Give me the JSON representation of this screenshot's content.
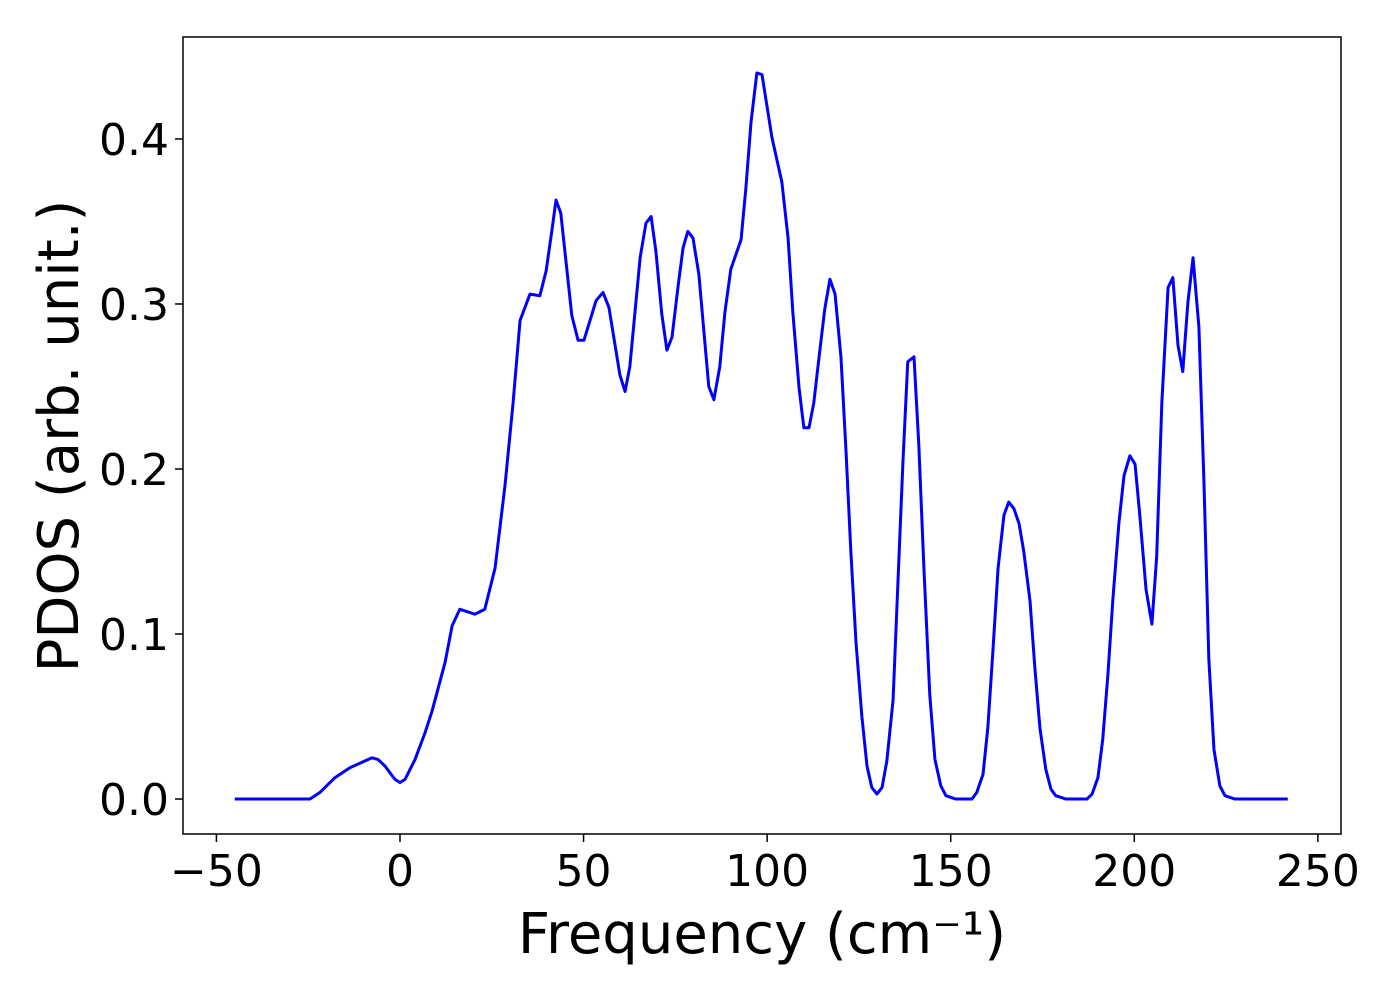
{
  "chart_data": {
    "type": "line",
    "xlabel": "Frequency (cm⁻¹)",
    "ylabel": "PDOS (arb. unit.)",
    "x": [
      -45,
      -24.5,
      -21.8,
      -17.7,
      -13.6,
      -7.6,
      -6,
      -4.1,
      -1.4,
      0,
      1.4,
      4.1,
      6.8,
      8.7,
      12.3,
      14.2,
      16.3,
      20.4,
      23.1,
      25.9,
      28.6,
      30.8,
      32.7,
      35.4,
      38.1,
      39.8,
      41.4,
      42.5,
      43.8,
      46.8,
      48.5,
      50.1,
      53.4,
      55.3,
      56.9,
      59.9,
      61.3,
      62.6,
      65.4,
      67,
      68.4,
      69.7,
      71.3,
      72.7,
      74.1,
      75.7,
      77.1,
      78.4,
      79.8,
      81.4,
      84.1,
      85.5,
      87.1,
      88.5,
      90.1,
      92.9,
      94.2,
      95.6,
      97.2,
      98.6,
      101.3,
      104,
      105.7,
      107,
      108.7,
      110,
      111.4,
      112.7,
      114.1,
      115.7,
      117.1,
      118.5,
      120.1,
      121.5,
      122.8,
      124.2,
      125.8,
      127.2,
      128.5,
      129.9,
      131.3,
      132.6,
      134.3,
      135.6,
      137,
      138.3,
      140,
      141.3,
      142.7,
      144.3,
      145.7,
      147.3,
      148.7,
      151.4,
      155.8,
      157.1,
      158.8,
      160.1,
      161.5,
      162.9,
      164.5,
      165.8,
      167.2,
      168.6,
      169.9,
      171.6,
      172.9,
      174.3,
      175.9,
      177.3,
      178.6,
      181.4,
      187.1,
      188.5,
      190.1,
      191.4,
      192.8,
      194.2,
      195.8,
      197.2,
      198.8,
      200.2,
      201.5,
      203.2,
      204.8,
      206.1,
      207.5,
      209.2,
      210.5,
      211.9,
      213.2,
      214.6,
      216,
      217.6,
      219,
      220.3,
      221.7,
      223.3,
      224.7,
      227.4,
      241.8
    ],
    "series": [
      {
        "name": "PDOS",
        "color": "#0000ff",
        "values": [
          0,
          0,
          0.004,
          0.013,
          0.019,
          0.025,
          0.024,
          0.02,
          0.012,
          0.01,
          0.012,
          0.024,
          0.04,
          0.053,
          0.083,
          0.105,
          0.115,
          0.112,
          0.115,
          0.14,
          0.19,
          0.24,
          0.29,
          0.306,
          0.305,
          0.32,
          0.345,
          0.363,
          0.355,
          0.293,
          0.278,
          0.278,
          0.302,
          0.307,
          0.298,
          0.257,
          0.247,
          0.262,
          0.328,
          0.349,
          0.353,
          0.332,
          0.294,
          0.272,
          0.28,
          0.31,
          0.334,
          0.344,
          0.34,
          0.318,
          0.25,
          0.242,
          0.262,
          0.295,
          0.321,
          0.339,
          0.37,
          0.41,
          0.44,
          0.439,
          0.401,
          0.374,
          0.34,
          0.295,
          0.249,
          0.225,
          0.225,
          0.24,
          0.267,
          0.297,
          0.315,
          0.306,
          0.268,
          0.21,
          0.15,
          0.095,
          0.05,
          0.02,
          0.007,
          0.003,
          0.007,
          0.023,
          0.06,
          0.13,
          0.205,
          0.265,
          0.268,
          0.215,
          0.14,
          0.063,
          0.024,
          0.008,
          0.002,
          0,
          0,
          0.004,
          0.015,
          0.043,
          0.09,
          0.14,
          0.172,
          0.18,
          0.176,
          0.167,
          0.15,
          0.12,
          0.08,
          0.043,
          0.018,
          0.006,
          0.002,
          0,
          0,
          0.003,
          0.013,
          0.036,
          0.075,
          0.122,
          0.167,
          0.196,
          0.208,
          0.203,
          0.172,
          0.127,
          0.106,
          0.147,
          0.24,
          0.31,
          0.316,
          0.275,
          0.259,
          0.301,
          0.328,
          0.286,
          0.19,
          0.085,
          0.03,
          0.008,
          0.002,
          0,
          0
        ]
      }
    ],
    "xlim": [
      -59.1,
      256.3
    ],
    "ylim": [
      -0.0212,
      0.4618
    ],
    "xticks": [
      {
        "value": -50,
        "label": "−50"
      },
      0,
      50,
      100,
      150,
      200,
      250
    ],
    "yticks": [
      {
        "value": 0,
        "label": "0.0"
      },
      0.1,
      0.2,
      0.3,
      0.4
    ],
    "grid": false
  }
}
